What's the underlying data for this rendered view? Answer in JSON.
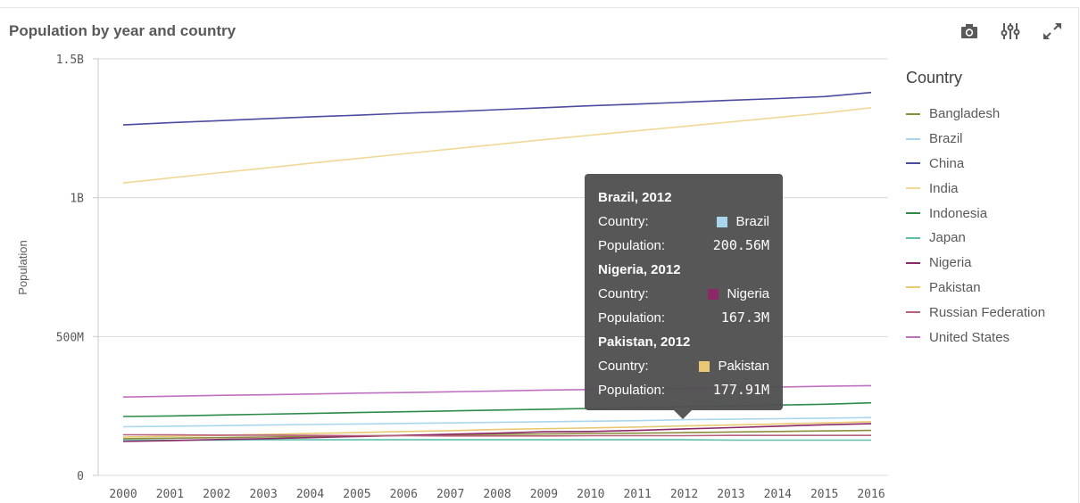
{
  "header": {
    "title": "Population by year and country",
    "tools": [
      "camera-icon",
      "sliders-icon",
      "expand-icon"
    ]
  },
  "legend": {
    "title": "Country",
    "items": [
      {
        "label": "Bangladesh",
        "color": "#8c8c3c"
      },
      {
        "label": "Brazil",
        "color": "#a8d6ec"
      },
      {
        "label": "China",
        "color": "#4b4ba0"
      },
      {
        "label": "India",
        "color": "#f0d896"
      },
      {
        "label": "Indonesia",
        "color": "#2e8b4a"
      },
      {
        "label": "Japan",
        "color": "#5cbfaa"
      },
      {
        "label": "Nigeria",
        "color": "#8c2868"
      },
      {
        "label": "Pakistan",
        "color": "#e8c870"
      },
      {
        "label": "Russian Federation",
        "color": "#b8607c"
      },
      {
        "label": "United States",
        "color": "#c070c0"
      }
    ]
  },
  "chart_data": {
    "type": "line",
    "title": "Population by year and country",
    "xlabel": "",
    "ylabel": "Population",
    "x": [
      2000,
      2001,
      2002,
      2003,
      2004,
      2005,
      2006,
      2007,
      2008,
      2009,
      2010,
      2011,
      2012,
      2013,
      2014,
      2015,
      2016
    ],
    "xtick_labels": [
      "2000",
      "2001",
      "2002",
      "2003",
      "2004",
      "2005",
      "2006",
      "2007",
      "2008",
      "2009",
      "2010",
      "2011",
      "2012",
      "2013",
      "2014",
      "2015",
      "2016"
    ],
    "ylim": [
      0,
      1500000000
    ],
    "yticks": [
      0,
      500000000,
      1000000000,
      1500000000
    ],
    "ytick_labels": [
      "0",
      "500M",
      "1B",
      "1.5B"
    ],
    "grid": true,
    "legend_position": "right",
    "series": [
      {
        "name": "Bangladesh",
        "color": "#8c8c3c",
        "values": [
          132000000,
          134000000,
          136000000,
          138000000,
          140000000,
          142000000,
          144000000,
          146000000,
          148000000,
          149000000,
          151000000,
          152000000,
          154000000,
          156000000,
          158000000,
          160000000,
          162000000
        ]
      },
      {
        "name": "Brazil",
        "color": "#a8d6ec",
        "values": [
          175000000,
          177000000,
          179000000,
          181000000,
          183000000,
          185000000,
          187000000,
          189000000,
          191000000,
          193000000,
          195000000,
          197000000,
          200560000,
          202000000,
          204000000,
          206000000,
          208000000
        ]
      },
      {
        "name": "China",
        "color": "#4b4ba0",
        "values": [
          1262000000,
          1270000000,
          1277000000,
          1284000000,
          1291000000,
          1297000000,
          1304000000,
          1310000000,
          1317000000,
          1324000000,
          1331000000,
          1337000000,
          1344000000,
          1351000000,
          1357000000,
          1364000000,
          1379000000
        ]
      },
      {
        "name": "India",
        "color": "#f0d896",
        "values": [
          1053000000,
          1071000000,
          1089000000,
          1106000000,
          1124000000,
          1141000000,
          1158000000,
          1175000000,
          1192000000,
          1209000000,
          1225000000,
          1241000000,
          1257000000,
          1273000000,
          1289000000,
          1305000000,
          1324000000
        ]
      },
      {
        "name": "Indonesia",
        "color": "#2e8b4a",
        "values": [
          212000000,
          214000000,
          217000000,
          220000000,
          223000000,
          226000000,
          229000000,
          232000000,
          235000000,
          238000000,
          241000000,
          244000000,
          247000000,
          250000000,
          253000000,
          256000000,
          261000000
        ]
      },
      {
        "name": "Japan",
        "color": "#5cbfaa",
        "values": [
          127000000,
          127000000,
          127000000,
          128000000,
          128000000,
          128000000,
          128000000,
          128000000,
          128000000,
          128000000,
          128000000,
          128000000,
          128000000,
          127000000,
          127000000,
          127000000,
          127000000
        ]
      },
      {
        "name": "Nigeria",
        "color": "#8c2868",
        "values": [
          122000000,
          125000000,
          129000000,
          132000000,
          136000000,
          140000000,
          144000000,
          148000000,
          152000000,
          157000000,
          158000000,
          162000000,
          167300000,
          172000000,
          177000000,
          182000000,
          186000000
        ]
      },
      {
        "name": "Pakistan",
        "color": "#e8c870",
        "values": [
          138000000,
          141000000,
          144000000,
          147000000,
          151000000,
          154000000,
          158000000,
          161000000,
          165000000,
          168000000,
          171000000,
          174000000,
          177910000,
          181000000,
          185000000,
          189000000,
          193000000
        ]
      },
      {
        "name": "Russian Federation",
        "color": "#b8607c",
        "values": [
          146000000,
          146000000,
          145000000,
          145000000,
          144000000,
          143000000,
          143000000,
          142000000,
          142000000,
          142000000,
          143000000,
          143000000,
          143000000,
          144000000,
          144000000,
          144000000,
          144000000
        ]
      },
      {
        "name": "United States",
        "color": "#c070c0",
        "values": [
          282000000,
          285000000,
          288000000,
          290000000,
          293000000,
          296000000,
          298000000,
          301000000,
          304000000,
          307000000,
          309000000,
          311000000,
          314000000,
          316000000,
          318000000,
          321000000,
          323000000
        ]
      }
    ]
  },
  "tooltip": {
    "entries": [
      {
        "heading": "Brazil, 2012",
        "country_label": "Country:",
        "country": "Brazil",
        "color": "#a8d6ec",
        "population_label": "Population:",
        "population": "200.56M"
      },
      {
        "heading": "Nigeria, 2012",
        "country_label": "Country:",
        "country": "Nigeria",
        "color": "#8c2868",
        "population_label": "Population:",
        "population": "167.3M"
      },
      {
        "heading": "Pakistan, 2012",
        "country_label": "Country:",
        "country": "Pakistan",
        "color": "#e8c870",
        "population_label": "Population:",
        "population": "177.91M"
      }
    ]
  }
}
